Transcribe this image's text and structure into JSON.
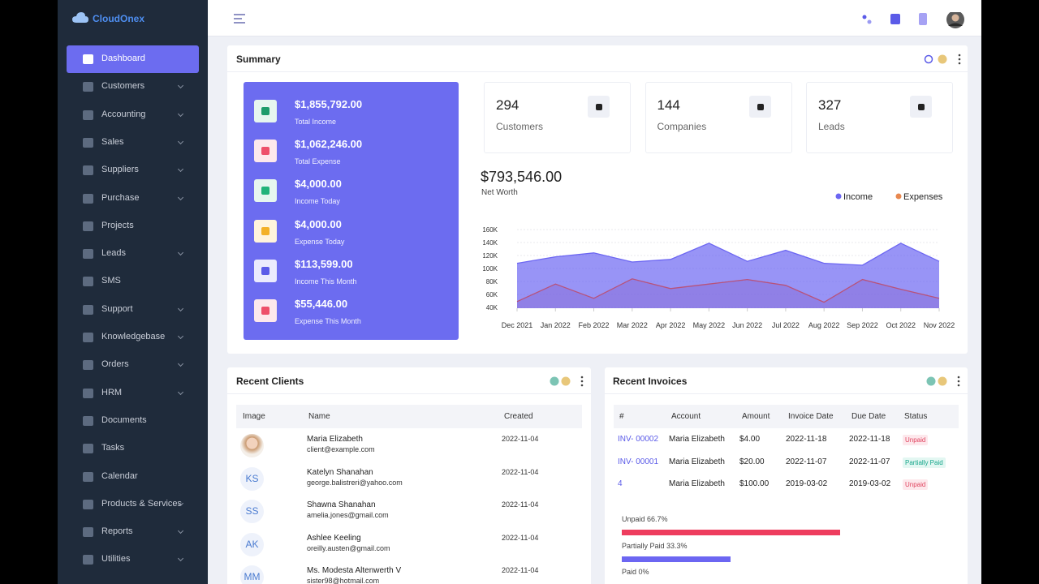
{
  "sidebar": {
    "brand": "CloudOnex",
    "menu": [
      {
        "label": "Dashboard",
        "active": true,
        "submenu": false
      },
      {
        "label": "Customers",
        "submenu": true
      },
      {
        "label": "Accounting",
        "submenu": true
      },
      {
        "label": "Sales",
        "submenu": true
      },
      {
        "label": "Suppliers",
        "submenu": true
      },
      {
        "label": "Purchase",
        "submenu": true
      },
      {
        "label": "Projects",
        "submenu": false
      },
      {
        "label": "Leads",
        "submenu": true
      },
      {
        "label": "SMS",
        "submenu": false
      },
      {
        "label": "Support",
        "submenu": true
      },
      {
        "label": "Knowledgebase",
        "submenu": true
      },
      {
        "label": "Orders",
        "submenu": true
      },
      {
        "label": "HRM",
        "submenu": true
      },
      {
        "label": "Documents",
        "submenu": false
      },
      {
        "label": "Tasks",
        "submenu": false
      },
      {
        "label": "Calendar",
        "submenu": false
      },
      {
        "label": "Products & Services",
        "submenu": true
      },
      {
        "label": "Reports",
        "submenu": true
      },
      {
        "label": "Utilities",
        "submenu": true
      }
    ]
  },
  "summary": {
    "title": "Summary",
    "totals": [
      {
        "amount": "$1,855,792.00",
        "label": "Total Income",
        "color": "#1e9c6b",
        "bg": "#e6f6ef"
      },
      {
        "amount": "$1,062,246.00",
        "label": "Total Expense",
        "color": "#ee4f6a",
        "bg": "#fde8ec"
      },
      {
        "amount": "$4,000.00",
        "label": "Income Today",
        "color": "#22b37a",
        "bg": "#e6f6ef"
      },
      {
        "amount": "$4,000.00",
        "label": "Expense Today",
        "color": "#f3b127",
        "bg": "#fff4dc"
      },
      {
        "amount": "$113,599.00",
        "label": "Income This Month",
        "color": "#5b5be8",
        "bg": "#ebebfd"
      },
      {
        "amount": "$55,446.00",
        "label": "Expense This Month",
        "color": "#ee4f6a",
        "bg": "#fde8ec"
      }
    ],
    "kpis": [
      {
        "value": 294,
        "label": "Customers"
      },
      {
        "value": 144,
        "label": "Companies"
      },
      {
        "value": 327,
        "label": "Leads"
      }
    ],
    "net_worth": {
      "amount": "$793,546.00",
      "label": "Net Worth"
    }
  },
  "chart_data": {
    "type": "area",
    "categories": [
      "Dec 2021",
      "Jan 2022",
      "Feb 2022",
      "Mar 2022",
      "Apr 2022",
      "May 2022",
      "Jun 2022",
      "Jul 2022",
      "Aug 2022",
      "Sep 2022",
      "Oct 2022",
      "Nov 2022"
    ],
    "series": [
      {
        "name": "Income",
        "color": "#6c66f2",
        "values": [
          108000,
          118000,
          124000,
          110000,
          114000,
          139000,
          111000,
          128000,
          108000,
          105000,
          139000,
          111000
        ]
      },
      {
        "name": "Expenses",
        "color": "#e8884f",
        "values": [
          49000,
          76000,
          54000,
          84000,
          69000,
          76000,
          83000,
          74000,
          48000,
          83000,
          68000,
          54000
        ]
      }
    ],
    "ylim": [
      40000,
      160000
    ],
    "yticks": [
      {
        "value": 40000,
        "label": "40K"
      },
      {
        "value": 60000,
        "label": "60K"
      },
      {
        "value": 80000,
        "label": "80K"
      },
      {
        "value": 100000,
        "label": "100K"
      },
      {
        "value": 120000,
        "label": "120K"
      },
      {
        "value": 140000,
        "label": "140K"
      },
      {
        "value": 160000,
        "label": "160K"
      }
    ],
    "grid": true,
    "legend": "top-right"
  },
  "recent_clients": {
    "title": "Recent Clients",
    "columns": [
      "Image",
      "Name",
      "Created"
    ],
    "rows": [
      {
        "name": "Maria Elizabeth",
        "email": "client@example.com",
        "created": "2022-11-04"
      },
      {
        "initials": "KS",
        "name": "Katelyn Shanahan",
        "email": "george.balistreri@yahoo.com",
        "created": "2022-11-04"
      },
      {
        "initials": "SS",
        "name": "Shawna Shanahan",
        "email": "amelia.jones@gmail.com",
        "created": "2022-11-04"
      },
      {
        "initials": "AK",
        "name": "Ashlee Keeling",
        "email": "oreilly.austen@gmail.com",
        "created": "2022-11-04"
      },
      {
        "initials": "MM",
        "name": "Ms. Modesta Altenwerth V",
        "email": "sister98@hotmail.com",
        "created": "2022-11-04"
      }
    ]
  },
  "recent_invoices": {
    "title": "Recent Invoices",
    "columns": [
      "#",
      "Account",
      "Amount",
      "Invoice Date",
      "Due Date",
      "Status"
    ],
    "rows": [
      {
        "cells": [
          "INV- 00002",
          "Maria Elizabeth",
          "$4.00",
          "2022-11-18",
          "2022-11-18",
          "Unpaid"
        ],
        "status_color": "#e0445f",
        "status_bg": "#fde8ec"
      },
      {
        "cells": [
          "INV- 00001",
          "Maria Elizabeth",
          "$20.00",
          "2022-11-07",
          "2022-11-07",
          "Partially Paid"
        ],
        "status_color": "#14a58a",
        "status_bg": "#e3f7f2"
      },
      {
        "cells": [
          "4",
          "Maria Elizabeth",
          "$100.00",
          "2019-03-02",
          "2019-03-02",
          "Unpaid"
        ],
        "status_color": "#e0445f",
        "status_bg": "#fde8ec"
      }
    ],
    "progress": [
      {
        "label": "Unpaid 66.7%",
        "value": 66.7,
        "color": "#ee3d5e"
      },
      {
        "label": "Partially Paid 33.3%",
        "value": 33.3,
        "color": "#6c66f2"
      },
      {
        "label": "Paid 0%",
        "value": 0,
        "color": "#2bb673"
      }
    ]
  }
}
